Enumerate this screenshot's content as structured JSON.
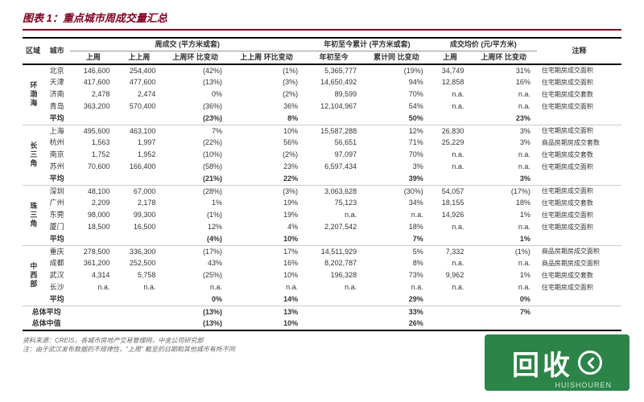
{
  "title": "图表 1：重点城市周成交量汇总",
  "headers": {
    "region": "区域",
    "city": "城市",
    "weekly": "周成交\n(平方米或套)",
    "ytd": "年初至今累计\n(平方米或套)",
    "price": "成交均价\n(元/平方米)",
    "note": "注释",
    "sub": {
      "last_week": "上周",
      "prev_week": "上上周",
      "wow": "上周环\n比变动",
      "prev_wow": "上上周\n环比变动",
      "ytd_val": "年初至今",
      "ytd_yoy": "累计同\n比变动",
      "price_last": "上周",
      "price_wow": "上周环\n比变动"
    }
  },
  "groups": [
    {
      "region": "环渤海",
      "rows": [
        {
          "city": "北京",
          "lw": "146,600",
          "pw": "254,400",
          "wow": "(42%)",
          "pwow": "(1%)",
          "ytd": "5,365,777",
          "yoy": "(19%)",
          "pl": "34,749",
          "pwc": "31%",
          "note": "住宅期房成交面积"
        },
        {
          "city": "天津",
          "lw": "417,600",
          "pw": "477,600",
          "wow": "(13%)",
          "pwow": "(3%)",
          "ytd": "14,650,492",
          "yoy": "94%",
          "pl": "12,858",
          "pwc": "16%",
          "note": "住宅期房成交面积"
        },
        {
          "city": "济南",
          "lw": "2,478",
          "pw": "2,474",
          "wow": "0%",
          "pwow": "(2%)",
          "ytd": "89,599",
          "yoy": "70%",
          "pl": "n.a.",
          "pwc": "n.a.",
          "note": "住宅期房成交套数"
        },
        {
          "city": "青岛",
          "lw": "363,200",
          "pw": "570,400",
          "wow": "(36%)",
          "pwow": "36%",
          "ytd": "12,104,967",
          "yoy": "54%",
          "pl": "n.a.",
          "pwc": "n.a.",
          "note": "住宅期房成交面积"
        }
      ],
      "avg": {
        "city": "平均",
        "wow": "(23%)",
        "pwow": "8%",
        "yoy": "50%",
        "pwc": "23%"
      }
    },
    {
      "region": "长三角",
      "rows": [
        {
          "city": "上海",
          "lw": "495,600",
          "pw": "463,100",
          "wow": "7%",
          "pwow": "10%",
          "ytd": "15,587,288",
          "yoy": "12%",
          "pl": "26,830",
          "pwc": "3%",
          "note": "住宅期房成交面积"
        },
        {
          "city": "杭州",
          "lw": "1,563",
          "pw": "1,997",
          "wow": "(22%)",
          "pwow": "56%",
          "ytd": "56,651",
          "yoy": "71%",
          "pl": "25,229",
          "pwc": "3%",
          "note": "商品房期房成交套数"
        },
        {
          "city": "南京",
          "lw": "1,752",
          "pw": "1,952",
          "wow": "(10%)",
          "pwow": "(2%)",
          "ytd": "97,097",
          "yoy": "70%",
          "pl": "n.a.",
          "pwc": "n.a.",
          "note": "住宅期房成交套数"
        },
        {
          "city": "苏州",
          "lw": "70,600",
          "pw": "166,400",
          "wow": "(58%)",
          "pwow": "23%",
          "ytd": "6,597,434",
          "yoy": "3%",
          "pl": "n.a.",
          "pwc": "n.a.",
          "note": "住宅期房成交面积"
        }
      ],
      "avg": {
        "city": "平均",
        "wow": "(21%)",
        "pwow": "22%",
        "yoy": "39%",
        "pwc": "3%"
      }
    },
    {
      "region": "珠三角",
      "rows": [
        {
          "city": "深圳",
          "lw": "48,100",
          "pw": "67,000",
          "wow": "(28%)",
          "pwow": "(3%)",
          "ytd": "3,063,628",
          "yoy": "(30%)",
          "pl": "54,057",
          "pwc": "(17%)",
          "note": "住宅期房成交面积"
        },
        {
          "city": "广州",
          "lw": "2,209",
          "pw": "2,178",
          "wow": "1%",
          "pwow": "19%",
          "ytd": "75,123",
          "yoy": "34%",
          "pl": "18,155",
          "pwc": "18%",
          "note": "住宅期房成交套数"
        },
        {
          "city": "东莞",
          "lw": "98,000",
          "pw": "99,300",
          "wow": "(1%)",
          "pwow": "19%",
          "ytd": "n.a.",
          "yoy": "n.a.",
          "pl": "14,926",
          "pwc": "1%",
          "note": "住宅期房成交面积"
        },
        {
          "city": "厦门",
          "lw": "18,500",
          "pw": "16,500",
          "wow": "12%",
          "pwow": "4%",
          "ytd": "2,207,542",
          "yoy": "18%",
          "pl": "n.a.",
          "pwc": "n.a.",
          "note": "住宅期房成交面积"
        }
      ],
      "avg": {
        "city": "平均",
        "wow": "(4%)",
        "pwow": "10%",
        "yoy": "7%",
        "pwc": "1%"
      }
    },
    {
      "region": "中西部",
      "rows": [
        {
          "city": "重庆",
          "lw": "278,500",
          "pw": "336,300",
          "wow": "(17%)",
          "pwow": "17%",
          "ytd": "14,511,929",
          "yoy": "5%",
          "pl": "7,332",
          "pwc": "(1%)",
          "note": "商品房期房成交面积"
        },
        {
          "city": "成都",
          "lw": "361,200",
          "pw": "252,500",
          "wow": "43%",
          "pwow": "16%",
          "ytd": "8,202,787",
          "yoy": "8%",
          "pl": "n.a.",
          "pwc": "n.a.",
          "note": "商品房期房成交面积"
        },
        {
          "city": "武汉",
          "lw": "4,314",
          "pw": "5,758",
          "wow": "(25%)",
          "pwow": "10%",
          "ytd": "196,328",
          "yoy": "73%",
          "pl": "9,962",
          "pwc": "1%",
          "note": "住宅期房成交套数"
        },
        {
          "city": "长沙",
          "lw": "n.a.",
          "pw": "n.a.",
          "wow": "n.a.",
          "pwow": "n.a.",
          "ytd": "n.a.",
          "yoy": "n.a.",
          "pl": "n.a.",
          "pwc": "n.a.",
          "note": "住宅期房成交面积"
        }
      ],
      "avg": {
        "city": "平均",
        "wow": "0%",
        "pwow": "14%",
        "yoy": "29%",
        "pwc": "0%"
      }
    }
  ],
  "totals": [
    {
      "label": "总体平均",
      "wow": "(13%)",
      "pwow": "13%",
      "yoy": "33%",
      "pwc": "7%"
    },
    {
      "label": "总体中值",
      "wow": "(13%)",
      "pwow": "10%",
      "yoy": "26%",
      "pwc": ""
    }
  ],
  "footer": {
    "l1": "资料来源：CREIS，各城市房地产交易管理网，中金公司研究部",
    "l2": "注：由于武汉发布数据的不规律性，\"上周\" 截至的日期和其他城市有所不同"
  },
  "watermark": {
    "text": "回收",
    "sub": "HUISHOUREN"
  }
}
